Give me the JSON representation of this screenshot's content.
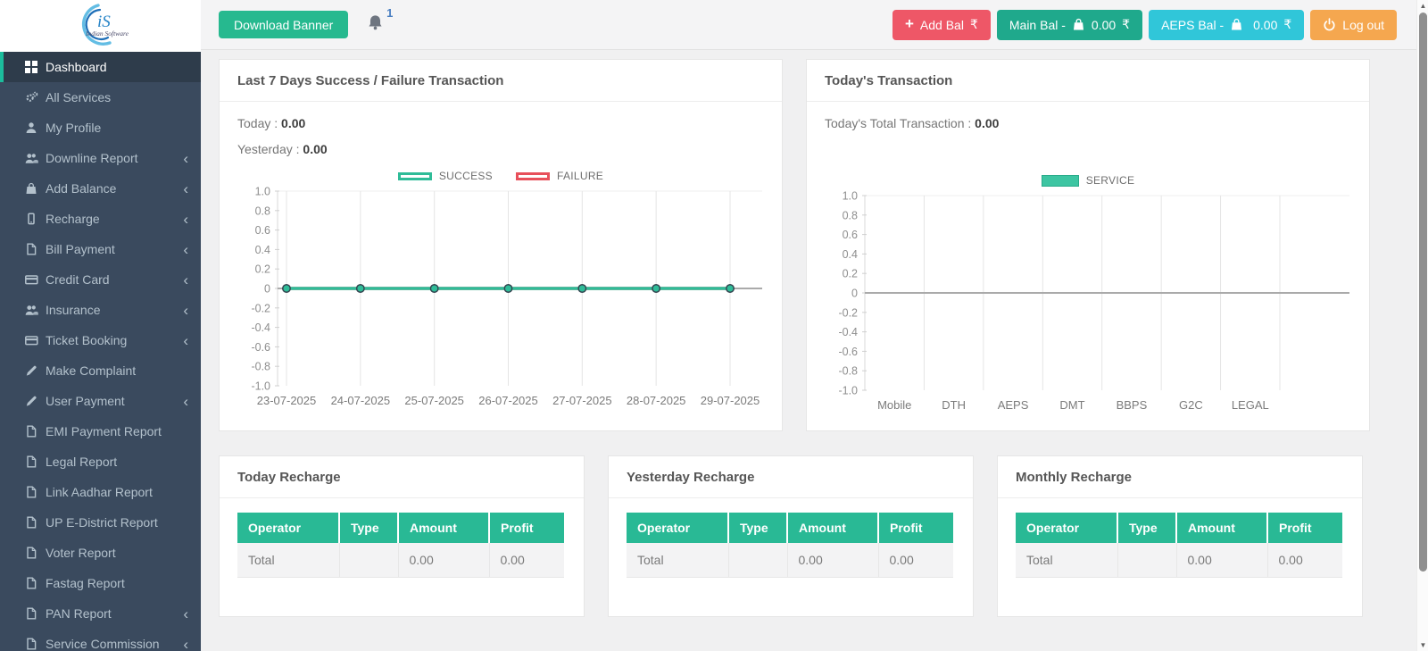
{
  "logo": {
    "monogram": "iS",
    "subtitle": "Indian Software"
  },
  "header": {
    "download_banner_label": "Download Banner",
    "notification_count": "1",
    "add_bal_label": "Add Bal",
    "add_bal_currency": "₹",
    "main_bal_label": "Main Bal -",
    "main_bal_amount": "0.00",
    "main_bal_currency": "₹",
    "aeps_bal_label": "AEPS Bal -",
    "aeps_bal_amount": "0.00",
    "aeps_bal_currency": "₹",
    "logout_label": "Log out"
  },
  "colors": {
    "accent_teal": "#26b98f",
    "add_bal_red": "#ee5767",
    "main_bal_green": "#1fa98c",
    "aeps_bal_cyan": "#30c6d9",
    "logout_orange": "#f5a74f",
    "table_header_teal": "#29b995",
    "sidebar_bg": "#3a4a5e",
    "sidebar_active_border": "#1cbd9d"
  },
  "sidebar": {
    "items": [
      {
        "label": "Dashboard",
        "icon": "grid",
        "chevron": false,
        "active": true
      },
      {
        "label": "All Services",
        "icon": "gears",
        "chevron": false,
        "active": false
      },
      {
        "label": "My Profile",
        "icon": "user",
        "chevron": false,
        "active": false
      },
      {
        "label": "Downline Report",
        "icon": "users",
        "chevron": true,
        "active": false
      },
      {
        "label": "Add Balance",
        "icon": "bag",
        "chevron": true,
        "active": false
      },
      {
        "label": "Recharge",
        "icon": "mobile",
        "chevron": true,
        "active": false
      },
      {
        "label": "Bill Payment",
        "icon": "file",
        "chevron": true,
        "active": false
      },
      {
        "label": "Credit Card",
        "icon": "card",
        "chevron": true,
        "active": false
      },
      {
        "label": "Insurance",
        "icon": "users",
        "chevron": true,
        "active": false
      },
      {
        "label": "Ticket Booking",
        "icon": "card",
        "chevron": true,
        "active": false
      },
      {
        "label": "Make Complaint",
        "icon": "pencil",
        "chevron": false,
        "active": false
      },
      {
        "label": "User Payment",
        "icon": "pencil",
        "chevron": true,
        "active": false
      },
      {
        "label": "EMI Payment Report",
        "icon": "file",
        "chevron": false,
        "active": false
      },
      {
        "label": "Legal Report",
        "icon": "file",
        "chevron": false,
        "active": false
      },
      {
        "label": "Link Aadhar Report",
        "icon": "file",
        "chevron": false,
        "active": false
      },
      {
        "label": "UP E-District Report",
        "icon": "file",
        "chevron": false,
        "active": false
      },
      {
        "label": "Voter Report",
        "icon": "file",
        "chevron": false,
        "active": false
      },
      {
        "label": "Fastag Report",
        "icon": "file",
        "chevron": false,
        "active": false
      },
      {
        "label": "PAN Report",
        "icon": "file",
        "chevron": true,
        "active": false
      },
      {
        "label": "Service Commission",
        "icon": "file",
        "chevron": true,
        "active": false
      }
    ]
  },
  "panels": {
    "chart1": {
      "title": "Last 7 Days Success / Failure Transaction",
      "today_label": "Today :",
      "today_value": "0.00",
      "yesterday_label": "Yesterday :",
      "yesterday_value": "0.00"
    },
    "chart2": {
      "title": "Today's Transaction",
      "total_label": "Today's Total Transaction :",
      "total_value": "0.00"
    }
  },
  "chart_data": [
    {
      "type": "line",
      "title": "Last 7 Days Success / Failure Transaction",
      "categories": [
        "23-07-2025",
        "24-07-2025",
        "25-07-2025",
        "26-07-2025",
        "27-07-2025",
        "28-07-2025",
        "29-07-2025"
      ],
      "series": [
        {
          "name": "SUCCESS",
          "values": [
            0,
            0,
            0,
            0,
            0,
            0,
            0
          ],
          "color": "#2fbc98"
        },
        {
          "name": "FAILURE",
          "values": [
            0,
            0,
            0,
            0,
            0,
            0,
            0
          ],
          "color": "#e8505b"
        }
      ],
      "yticks": [
        1.0,
        0.8,
        0.6,
        0.4,
        0.2,
        0,
        -0.2,
        -0.4,
        -0.6,
        -0.8,
        -1.0
      ],
      "ylim": [
        -1,
        1
      ],
      "grid": "vertical-gridlines-with-zero-line",
      "legend_position": "top"
    },
    {
      "type": "bar",
      "title": "Today's Transaction",
      "categories": [
        "Mobile",
        "DTH",
        "AEPS",
        "DMT",
        "BBPS",
        "G2C",
        "LEGAL"
      ],
      "series": [
        {
          "name": "SERVICE",
          "values": [
            0,
            0,
            0,
            0,
            0,
            0,
            0
          ],
          "color": "#3dc5a2"
        }
      ],
      "yticks": [
        1.0,
        0.8,
        0.6,
        0.4,
        0.2,
        0,
        -0.2,
        -0.4,
        -0.6,
        -0.8,
        -1.0
      ],
      "ylim": [
        -1,
        1
      ],
      "grid": "vertical-gridlines-with-zero-line",
      "legend_position": "top"
    }
  ],
  "tables": [
    {
      "title": "Today Recharge",
      "columns": [
        "Operator",
        "Type",
        "Amount",
        "Profit"
      ],
      "rows": [
        [
          "Total",
          "",
          "0.00",
          "0.00"
        ]
      ]
    },
    {
      "title": "Yesterday Recharge",
      "columns": [
        "Operator",
        "Type",
        "Amount",
        "Profit"
      ],
      "rows": [
        [
          "Total",
          "",
          "0.00",
          "0.00"
        ]
      ]
    },
    {
      "title": "Monthly Recharge",
      "columns": [
        "Operator",
        "Type",
        "Amount",
        "Profit"
      ],
      "rows": [
        [
          "Total",
          "",
          "0.00",
          "0.00"
        ]
      ]
    }
  ]
}
